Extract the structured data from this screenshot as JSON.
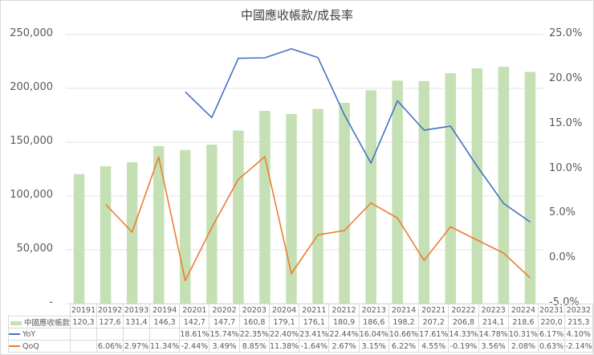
{
  "chart_data": {
    "type": "bar+line",
    "title": "中國應收帳款/成長率",
    "categories": [
      "20191",
      "20192",
      "20193",
      "20194",
      "20201",
      "20202",
      "20203",
      "20204",
      "20211",
      "20212",
      "20213",
      "20214",
      "20221",
      "20222",
      "20223",
      "20224",
      "20231",
      "20232"
    ],
    "series": [
      {
        "name": "中國應收帳款",
        "type": "bar",
        "axis": "left",
        "color": "#c5e0b4",
        "values": [
          120300,
          127600,
          131400,
          146300,
          142700,
          147700,
          160800,
          179100,
          176100,
          180900,
          186600,
          198200,
          207200,
          206800,
          214100,
          218600,
          220000,
          215300
        ],
        "table_labels": [
          "120,3",
          "127,6",
          "131,4",
          "146,3",
          "142,7",
          "147,7",
          "160,8",
          "179,1",
          "176,1",
          "180,9",
          "186,6",
          "198,2",
          "207,2",
          "206,8",
          "214,1",
          "218,6",
          "220,0",
          "215,3"
        ]
      },
      {
        "name": "YoY",
        "type": "line",
        "axis": "right",
        "color": "#4472c4",
        "values": [
          null,
          null,
          null,
          null,
          18.61,
          15.74,
          22.35,
          22.4,
          23.41,
          22.44,
          16.04,
          10.66,
          17.61,
          14.33,
          14.78,
          10.31,
          6.17,
          4.1
        ],
        "table_labels": [
          "",
          "",
          "",
          "",
          "18.61%",
          "15.74%",
          "22.35%",
          "22.40%",
          "23.41%",
          "22.44%",
          "16.04%",
          "10.66%",
          "17.61%",
          "14.33%",
          "14.78%",
          "10.31%",
          "6.17%",
          "4.10%"
        ]
      },
      {
        "name": "QoQ",
        "type": "line",
        "axis": "right",
        "color": "#ed7d31",
        "values": [
          null,
          6.06,
          2.97,
          11.34,
          -2.44,
          3.49,
          8.85,
          11.38,
          -1.64,
          2.67,
          3.15,
          6.22,
          4.55,
          -0.19,
          3.56,
          2.08,
          0.63,
          -2.14
        ],
        "table_labels": [
          "",
          "6.06%",
          "2.97%",
          "11.34%",
          "-2.44%",
          "3.49%",
          "8.85%",
          "11.38%",
          "-1.64%",
          "2.67%",
          "3.15%",
          "6.22%",
          "4.55%",
          "-0.19%",
          "3.56%",
          "2.08%",
          "0.63%",
          "-2.14%"
        ]
      }
    ],
    "left_axis": {
      "ylim": [
        0,
        250000
      ],
      "ticks": [
        250000,
        200000,
        150000,
        100000,
        50000,
        0
      ],
      "tick_labels": [
        "250,000",
        "200,000",
        "150,000",
        "100,000",
        "50,000",
        "-"
      ]
    },
    "right_axis": {
      "ylim": [
        -5,
        25
      ],
      "ticks": [
        25,
        20,
        15,
        10,
        5,
        0,
        -5
      ],
      "tick_labels": [
        "25.0%",
        "20.0%",
        "15.0%",
        "10.0%",
        "5.0%",
        "0.0%",
        "-5.0%"
      ]
    },
    "grid": true,
    "legend_position": "data-table-bottom",
    "xlabel": "",
    "ylabel": ""
  }
}
